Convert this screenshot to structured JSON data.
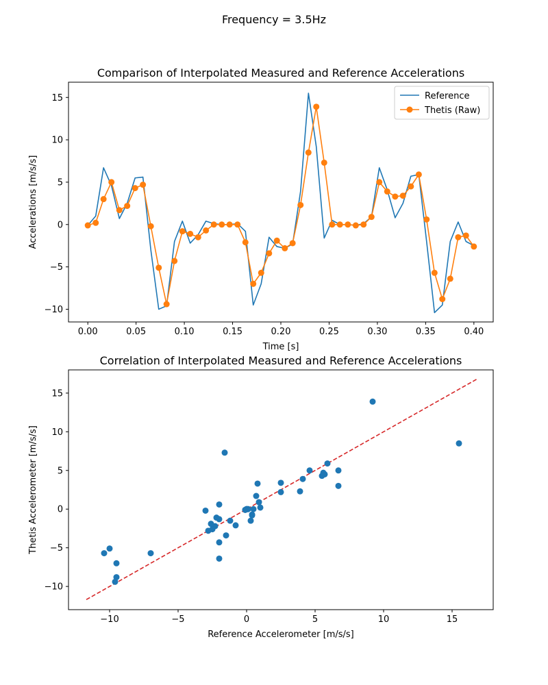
{
  "figure": {
    "suptitle": "Frequency = 3.5Hz"
  },
  "colors": {
    "reference": "#1f77b4",
    "thetis": "#ff7f0e",
    "fit_line": "#d62728",
    "scatter": "#1f77b4"
  },
  "chart_data": [
    {
      "type": "line",
      "title": "Comparison of Interpolated Measured and Reference Accelerations",
      "xlabel": "Time [s]",
      "ylabel": "Accelerations [m/s/s]",
      "xlim": [
        -0.02,
        0.42
      ],
      "ylim": [
        -11.5,
        16.8
      ],
      "xticks": [
        0.0,
        0.05,
        0.1,
        0.15,
        0.2,
        0.25,
        0.3,
        0.35,
        0.4
      ],
      "xtick_labels": [
        "0.00",
        "0.05",
        "0.10",
        "0.15",
        "0.20",
        "0.25",
        "0.30",
        "0.35",
        "0.40"
      ],
      "yticks": [
        -10,
        -5,
        0,
        5,
        10,
        15
      ],
      "ytick_labels": [
        "−10",
        "−5",
        "0",
        "5",
        "10",
        "15"
      ],
      "legend": {
        "location": "upper-right",
        "entries": [
          "Reference",
          "Thetis (Raw)"
        ]
      },
      "series": [
        {
          "name": "Reference",
          "marker": "none",
          "x": [
            0.0,
            0.0082,
            0.0163,
            0.0245,
            0.0327,
            0.0408,
            0.049,
            0.0571,
            0.0653,
            0.0735,
            0.0816,
            0.0898,
            0.098,
            0.1061,
            0.1143,
            0.1224,
            0.1306,
            0.1388,
            0.1469,
            0.1551,
            0.1633,
            0.1714,
            0.1796,
            0.1878,
            0.1959,
            0.2041,
            0.2122,
            0.2204,
            0.2286,
            0.2367,
            0.2449,
            0.2531,
            0.2612,
            0.2694,
            0.2776,
            0.2857,
            0.2939,
            0.302,
            0.3102,
            0.3184,
            0.3265,
            0.3347,
            0.3429,
            0.351,
            0.3592,
            0.3673,
            0.3755,
            0.3837,
            0.3918,
            0.4
          ],
          "y": [
            -0.1,
            1.0,
            6.7,
            4.6,
            0.7,
            2.5,
            5.5,
            5.6,
            -3.0,
            -10.0,
            -9.6,
            -2.0,
            0.4,
            -2.2,
            -1.2,
            0.4,
            0.1,
            0.0,
            0.0,
            0.1,
            -0.8,
            -9.5,
            -7.0,
            -1.5,
            -2.6,
            -2.8,
            -2.3,
            3.9,
            15.5,
            9.2,
            -1.6,
            0.5,
            0.0,
            0.0,
            -0.1,
            0.1,
            0.9,
            6.7,
            4.1,
            0.8,
            2.5,
            5.7,
            5.9,
            -2.0,
            -10.4,
            -9.5,
            -2.0,
            0.3,
            -2.0,
            -2.5
          ]
        },
        {
          "name": "Thetis (Raw)",
          "marker": "circle",
          "x": [
            0.0,
            0.0082,
            0.0163,
            0.0245,
            0.0327,
            0.0408,
            0.049,
            0.0571,
            0.0653,
            0.0735,
            0.0816,
            0.0898,
            0.098,
            0.1061,
            0.1143,
            0.1224,
            0.1306,
            0.1388,
            0.1469,
            0.1551,
            0.1633,
            0.1714,
            0.1796,
            0.1878,
            0.1959,
            0.2041,
            0.2122,
            0.2204,
            0.2286,
            0.2367,
            0.2449,
            0.2531,
            0.2612,
            0.2694,
            0.2776,
            0.2857,
            0.2939,
            0.302,
            0.3102,
            0.3184,
            0.3265,
            0.3347,
            0.3429,
            0.351,
            0.3592,
            0.3673,
            0.3755,
            0.3837,
            0.3918,
            0.4
          ],
          "y": [
            -0.1,
            0.2,
            3.0,
            5.0,
            1.7,
            2.2,
            4.3,
            4.7,
            -0.2,
            -5.1,
            -9.4,
            -4.3,
            -0.8,
            -1.1,
            -1.5,
            -0.7,
            0.0,
            0.0,
            0.0,
            0.0,
            -2.1,
            -7.0,
            -5.7,
            -3.4,
            -1.9,
            -2.8,
            -2.2,
            2.3,
            8.5,
            13.9,
            7.3,
            0.0,
            0.0,
            0.0,
            -0.1,
            0.0,
            0.9,
            5.0,
            3.9,
            3.3,
            3.4,
            4.5,
            5.9,
            0.6,
            -5.7,
            -8.8,
            -6.4,
            -1.5,
            -1.3,
            -2.6
          ]
        }
      ]
    },
    {
      "type": "scatter",
      "title": "Correlation of Interpolated Measured and Reference Accelerations",
      "xlabel": "Reference Accelerometer [m/s/s]",
      "ylabel": "Thetis Accelerometer [m/s/s]",
      "xlim": [
        -13.0,
        18.0
      ],
      "ylim": [
        -13.0,
        18.0
      ],
      "xticks": [
        -10,
        -5,
        0,
        5,
        10,
        15
      ],
      "xtick_labels": [
        "−10",
        "−5",
        "0",
        "5",
        "10",
        "15"
      ],
      "yticks": [
        -10,
        -5,
        0,
        5,
        10,
        15
      ],
      "ytick_labels": [
        "−10",
        "−5",
        "0",
        "5",
        "10",
        "15"
      ],
      "reference_line": {
        "style": "dashed",
        "from": [
          -11.7,
          -11.7
        ],
        "to": [
          16.8,
          16.8
        ]
      },
      "points": {
        "x": [
          -0.1,
          1.0,
          6.7,
          4.6,
          0.7,
          2.5,
          5.5,
          5.6,
          -3.0,
          -10.0,
          -9.6,
          -2.0,
          0.4,
          -2.2,
          -1.2,
          0.4,
          0.1,
          0.0,
          0.0,
          0.1,
          -0.8,
          -9.5,
          -7.0,
          -1.5,
          -2.6,
          -2.8,
          -2.3,
          3.9,
          15.5,
          9.2,
          -1.6,
          0.5,
          0.0,
          0.0,
          -0.1,
          0.1,
          0.9,
          6.7,
          4.1,
          0.8,
          2.5,
          5.7,
          5.9,
          -2.0,
          -10.4,
          -9.5,
          -2.0,
          0.3,
          -2.0,
          -2.5
        ],
        "y": [
          -0.1,
          0.2,
          3.0,
          5.0,
          1.7,
          2.2,
          4.3,
          4.7,
          -0.2,
          -5.1,
          -9.4,
          -4.3,
          -0.8,
          -1.1,
          -1.5,
          -0.7,
          0.0,
          0.0,
          0.0,
          0.0,
          -2.1,
          -7.0,
          -5.7,
          -3.4,
          -1.9,
          -2.8,
          -2.2,
          2.3,
          8.5,
          13.9,
          7.3,
          0.0,
          0.0,
          0.0,
          -0.1,
          0.0,
          0.9,
          5.0,
          3.9,
          3.3,
          3.4,
          4.5,
          5.9,
          0.6,
          -5.7,
          -8.8,
          -6.4,
          -1.5,
          -1.3,
          -2.6
        ]
      }
    }
  ]
}
